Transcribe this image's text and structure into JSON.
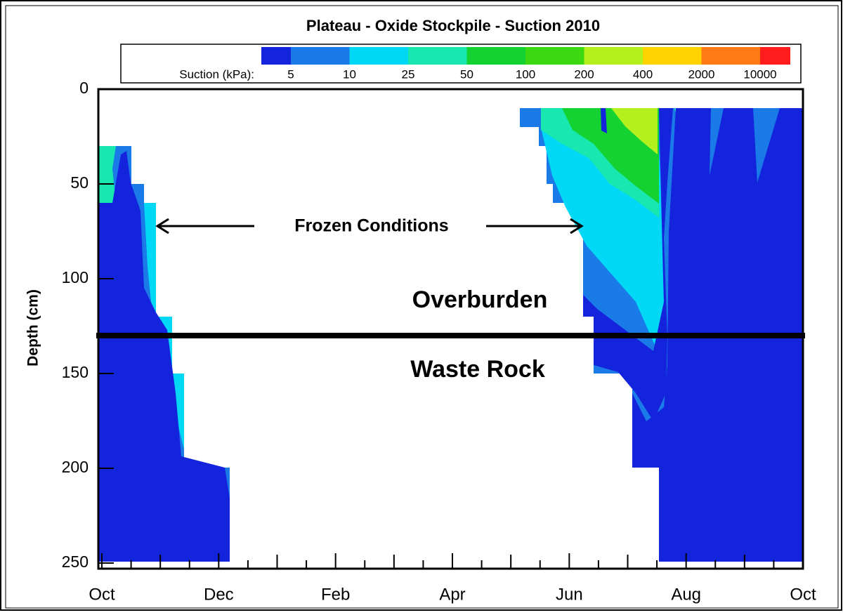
{
  "chart_data": {
    "type": "contour",
    "title": "Plateau - Oxide Stockpile - Suction 2010",
    "ylabel": "Depth (cm)",
    "ylim": [
      0,
      250
    ],
    "y_inverted": true,
    "yticks": [
      0,
      50,
      100,
      150,
      200,
      250
    ],
    "categories": [
      "Oct",
      "Dec",
      "Feb",
      "Apr",
      "Jun",
      "Aug",
      "Oct"
    ],
    "colorbar_label": "Suction (kPa):",
    "levels": [
      5,
      10,
      25,
      50,
      100,
      200,
      400,
      2000,
      10000
    ],
    "colors": [
      "#1424dc",
      "#1a7ae8",
      "#00d8f6",
      "#18e8b0",
      "#14d232",
      "#3cd812",
      "#b4f01e",
      "#ffd200",
      "#ff7a14",
      "#ff1c1c"
    ],
    "annotations": [
      "Frozen Conditions",
      "Overburden",
      "Waste Rock"
    ]
  }
}
